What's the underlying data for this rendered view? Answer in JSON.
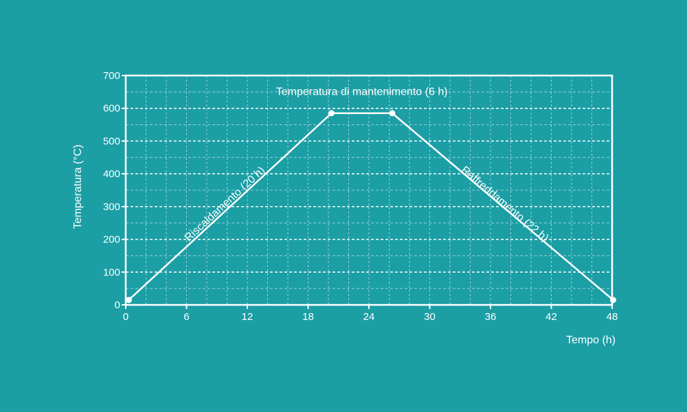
{
  "colors": {
    "background": "#1c9ea5",
    "foreground": "#ffffff"
  },
  "chart_data": {
    "type": "line",
    "title": "",
    "xlabel": "Tempo (h)",
    "ylabel": "Temperatura (°C)",
    "xlim": [
      0,
      48
    ],
    "ylim": [
      0,
      700
    ],
    "xticks": [
      "0",
      "6",
      "12",
      "18",
      "24",
      "30",
      "36",
      "42",
      "48"
    ],
    "yticks": [
      "0",
      "100",
      "200",
      "300",
      "400",
      "500",
      "600",
      "700"
    ],
    "grid": true,
    "series": [
      {
        "x": [
          0.3,
          20.3,
          26.3,
          48.1
        ],
        "y": [
          15,
          585,
          585,
          15
        ]
      }
    ],
    "annotations": [
      {
        "text": "Riscaldamento (20 h)",
        "x": 10,
        "y": 300
      },
      {
        "text": "Temperatura di mantenimento (6 h)",
        "x": 23.3,
        "y": 640
      },
      {
        "text": "Raffreddamento (22 h)",
        "x": 37.2,
        "y": 300
      }
    ]
  }
}
